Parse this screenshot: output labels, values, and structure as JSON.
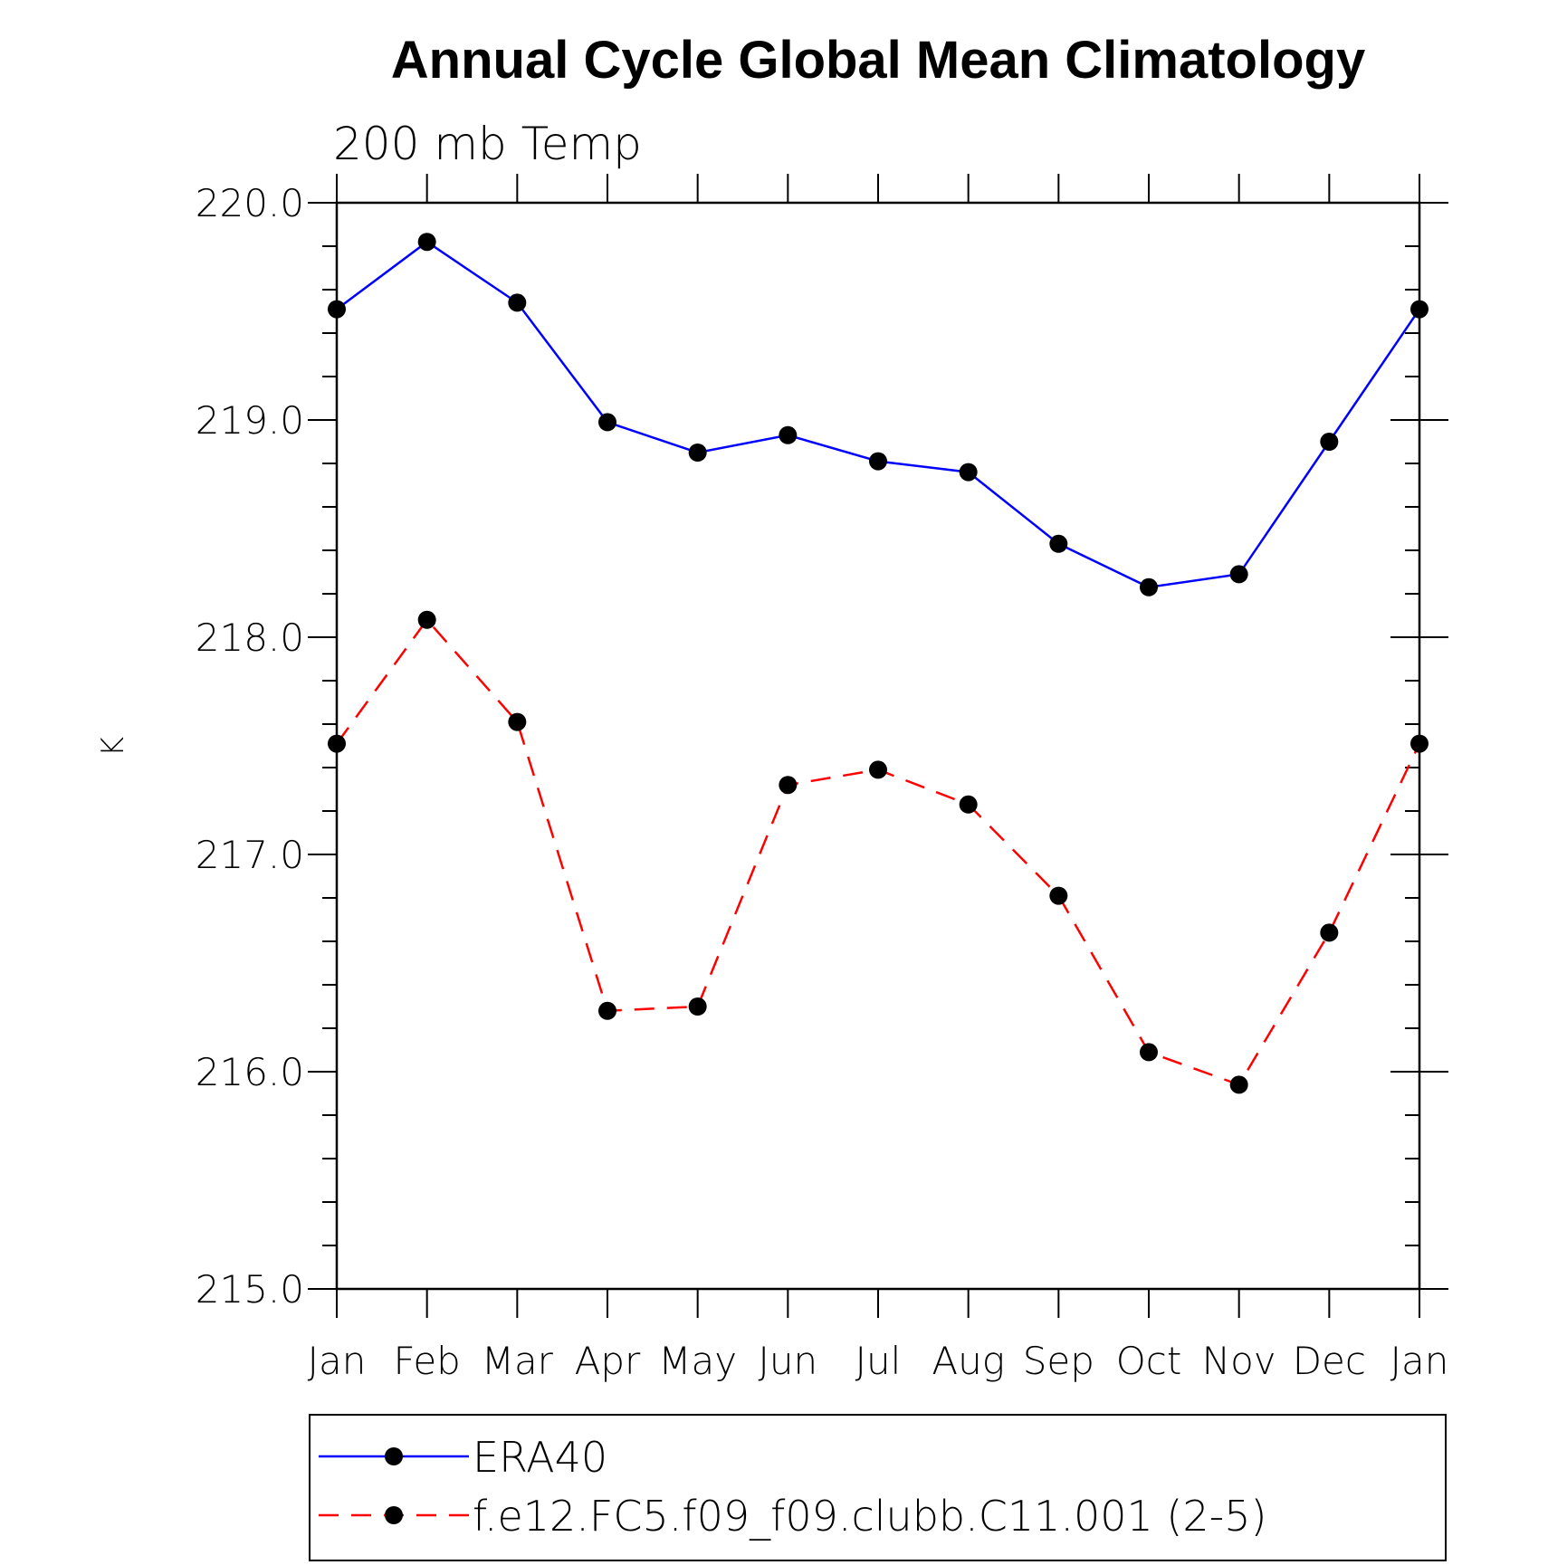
{
  "chart_data": {
    "type": "line",
    "title": "Annual Cycle Global Mean Climatology",
    "subtitle": "200 mb Temp",
    "ylabel": "K",
    "xlabel": "",
    "categories": [
      "Jan",
      "Feb",
      "Mar",
      "Apr",
      "May",
      "Jun",
      "Jul",
      "Aug",
      "Sep",
      "Oct",
      "Nov",
      "Dec",
      "Jan"
    ],
    "ylim": [
      215.0,
      220.0
    ],
    "yticks": [
      "215.0",
      "216.0",
      "217.0",
      "218.0",
      "219.0",
      "220.0"
    ],
    "grid": false,
    "legend_position": "bottom",
    "series": [
      {
        "name": "ERA40",
        "color": "#0000ff",
        "dash": "solid",
        "values": [
          219.51,
          219.82,
          219.54,
          218.99,
          218.85,
          218.93,
          218.81,
          218.76,
          218.43,
          218.23,
          218.29,
          218.9,
          219.51
        ]
      },
      {
        "name": "f.e12.FC5.f09_f09.clubb.C11.001 (2-5)",
        "color": "#ff0000",
        "dash": "dashed",
        "values": [
          217.51,
          218.08,
          217.61,
          216.28,
          216.3,
          217.32,
          217.39,
          217.23,
          216.81,
          216.09,
          215.94,
          216.64,
          217.51
        ]
      }
    ]
  }
}
